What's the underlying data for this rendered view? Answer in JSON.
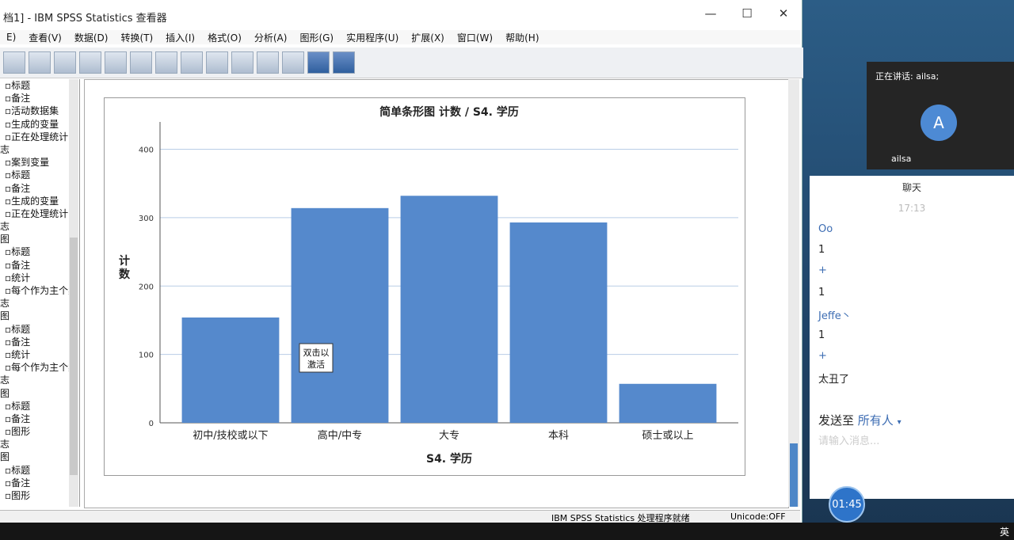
{
  "window": {
    "title": "档1] - IBM SPSS Statistics 查看器"
  },
  "menu": [
    "E)",
    "查看(V)",
    "数据(D)",
    "转换(T)",
    "插入(I)",
    "格式(O)",
    "分析(A)",
    "图形(G)",
    "实用程序(U)",
    "扩展(X)",
    "窗口(W)",
    "帮助(H)"
  ],
  "outline": [
    "标题",
    "备注",
    "活动数据集",
    "生成的变量",
    "正在处理统计",
    "志",
    "案到变量",
    "标题",
    "备注",
    "生成的变量",
    "正在处理统计",
    "志",
    "图",
    "标题",
    "备注",
    "统计",
    "每个作为主个案",
    "志",
    "图",
    "标题",
    "备注",
    "统计",
    "每个作为主个案",
    "志",
    "图",
    "标题",
    "备注",
    "图形",
    "志",
    "图",
    "标题",
    "备注",
    "图形"
  ],
  "chart_data": {
    "type": "bar",
    "title": "简单条形图 计数 / S4. 学历",
    "xlabel": "S4. 学历",
    "ylabel": "计数",
    "categories": [
      "初中/技校或以下",
      "高中/中专",
      "大专",
      "本科",
      "硕士或以上"
    ],
    "values": [
      154,
      314,
      332,
      293,
      57
    ],
    "ylim": [
      0,
      440
    ],
    "yticks": [
      0,
      100,
      200,
      300,
      400
    ],
    "grid": true,
    "bar_color": "#5589cc",
    "tooltip": "双击以激活"
  },
  "status": {
    "left": "IBM SPSS Statistics 处理程序就绪",
    "right": "Unicode:OFF"
  },
  "meeting": {
    "speaking": "正在讲话: ailsa;",
    "avatar_letter": "A",
    "user": "ailsa"
  },
  "chat": {
    "title": "聊天",
    "time": "17:13",
    "messages": [
      {
        "text": "Oo",
        "kind": "name"
      },
      {
        "text": "1",
        "kind": "msg"
      },
      {
        "text": "+",
        "kind": "name"
      },
      {
        "text": "1",
        "kind": "msg"
      },
      {
        "text": "Jeffe丶",
        "kind": "name"
      },
      {
        "text": "1",
        "kind": "msg"
      },
      {
        "text": "+",
        "kind": "name"
      },
      {
        "text": "太丑了",
        "kind": "msg"
      }
    ],
    "send_to_label": "发送至",
    "send_to_target": "所有人",
    "input_placeholder": "请输入消息..."
  },
  "timer": "01:45",
  "tray": {
    "ime": "英"
  }
}
